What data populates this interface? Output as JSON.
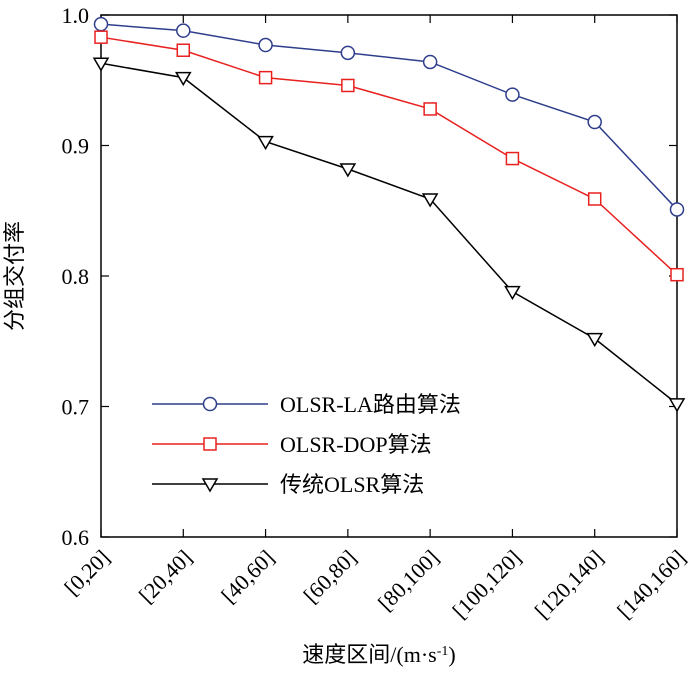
{
  "chart_data": {
    "type": "line",
    "categories": [
      "[0,20]",
      "[20,40]",
      "[40,60]",
      "[60,80]",
      "[80,100]",
      "[100,120]",
      "[120,140]",
      "[140,160]"
    ],
    "series": [
      {
        "name": "OLSR-LA路由算法",
        "values": [
          0.993,
          0.988,
          0.977,
          0.971,
          0.964,
          0.939,
          0.918,
          0.851
        ],
        "color": "#2e3e8c",
        "marker": "circle"
      },
      {
        "name": "OLSR-DOP算法",
        "values": [
          0.983,
          0.973,
          0.952,
          0.946,
          0.928,
          0.89,
          0.859,
          0.801
        ],
        "color": "#e8211f",
        "marker": "square"
      },
      {
        "name": "传统OLSR算法",
        "values": [
          0.963,
          0.952,
          0.903,
          0.882,
          0.859,
          0.788,
          0.752,
          0.702
        ],
        "color": "#000000",
        "marker": "triangle-down"
      }
    ],
    "xlabel": "速度区间/(m·s",
    "xlabel_sup": "-1",
    "xlabel_tail": ")",
    "ylabel": "分组交付率",
    "ylim": [
      0.6,
      1.0
    ],
    "yticks": [
      "0.6",
      "0.7",
      "0.8",
      "0.9",
      "1.0"
    ],
    "legend_position": "lower-left",
    "grid": false
  }
}
